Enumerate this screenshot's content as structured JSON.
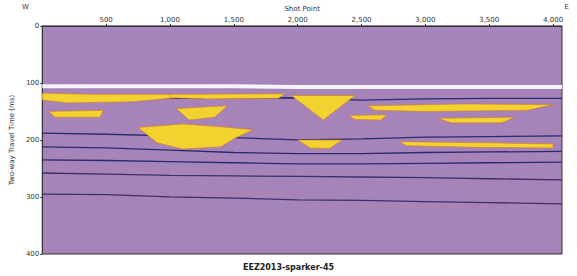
{
  "chart_data": {
    "type": "line",
    "title": "EEZ2013-sparker-45",
    "x_label": "Shot Point",
    "y_label": "Two-way Travel Time (ms)",
    "annotations": [
      "W",
      "E"
    ],
    "xlim": [
      0,
      4070
    ],
    "xticks": [
      500,
      1000,
      1500,
      2000,
      2500,
      3000,
      3500,
      4000
    ],
    "ylim": [
      0,
      400
    ],
    "yticks": [
      0,
      100,
      200,
      300,
      400
    ],
    "grid": false,
    "series": [
      {
        "type": "line",
        "color": "#f4f4ff",
        "x": [
          0,
          500,
          1000,
          1500,
          2000,
          2500,
          3000,
          3500,
          4070
        ],
        "values": [
          106,
          106,
          106,
          106,
          107,
          107,
          107,
          107,
          107
        ]
      },
      {
        "type": "line",
        "color": "#2a2a6e",
        "x": [
          0,
          500,
          1000,
          1500,
          2000,
          2500,
          3000,
          3500,
          4070
        ],
        "values": [
          125,
          126,
          127,
          127,
          126,
          130,
          128,
          127,
          127
        ]
      },
      {
        "type": "line",
        "color": "#2a2a6e",
        "x": [
          0,
          500,
          1000,
          1500,
          2000,
          2500,
          3000,
          3500,
          4070
        ],
        "values": [
          188,
          190,
          193,
          196,
          200,
          198,
          195,
          194,
          193
        ]
      },
      {
        "type": "line",
        "color": "#2a2a6e",
        "x": [
          0,
          500,
          1000,
          1500,
          2000,
          2500,
          3000,
          3500,
          4070
        ],
        "values": [
          212,
          214,
          218,
          222,
          224,
          224,
          222,
          221,
          220
        ]
      },
      {
        "type": "line",
        "color": "#2a2a6e",
        "x": [
          0,
          500,
          1000,
          1500,
          2000,
          2500,
          3000,
          3500,
          4070
        ],
        "values": [
          235,
          236,
          238,
          240,
          242,
          242,
          241,
          240,
          239
        ]
      },
      {
        "type": "line",
        "color": "#3b2f6e",
        "x": [
          0,
          500,
          1000,
          1500,
          2000,
          2500,
          3000,
          3500,
          4070
        ],
        "values": [
          258,
          260,
          262,
          263,
          264,
          265,
          266,
          268,
          270
        ]
      },
      {
        "type": "line",
        "color": "#3b2f6e",
        "x": [
          0,
          500,
          1000,
          1500,
          2000,
          2500,
          3000,
          3500,
          4070
        ],
        "values": [
          295,
          296,
          300,
          302,
          305,
          306,
          308,
          310,
          312
        ]
      },
      {
        "type": "polygon",
        "color": "#f2d22e",
        "points": [
          [
            0,
            118
          ],
          [
            400,
            120
          ],
          [
            1000,
            120
          ],
          [
            1050,
            126
          ],
          [
            700,
            133
          ],
          [
            200,
            135
          ],
          [
            0,
            130
          ]
        ]
      },
      {
        "type": "polygon",
        "color": "#f2d22e",
        "points": [
          [
            1000,
            120
          ],
          [
            1900,
            119
          ],
          [
            1850,
            127
          ],
          [
            1300,
            128
          ],
          [
            1000,
            126
          ]
        ]
      },
      {
        "type": "polygon",
        "color": "#f2d22e",
        "points": [
          [
            1950,
            122
          ],
          [
            2450,
            122
          ],
          [
            2200,
            165
          ]
        ]
      },
      {
        "type": "polygon",
        "color": "#f2d22e",
        "points": [
          [
            50,
            150
          ],
          [
            480,
            148
          ],
          [
            450,
            160
          ],
          [
            100,
            160
          ]
        ]
      },
      {
        "type": "polygon",
        "color": "#f2d22e",
        "points": [
          [
            750,
            178
          ],
          [
            1100,
            172
          ],
          [
            1350,
            176
          ],
          [
            1650,
            182
          ],
          [
            1500,
            198
          ],
          [
            1400,
            212
          ],
          [
            1100,
            216
          ],
          [
            900,
            205
          ]
        ]
      },
      {
        "type": "polygon",
        "color": "#f2d22e",
        "points": [
          [
            1050,
            145
          ],
          [
            1450,
            140
          ],
          [
            1350,
            160
          ],
          [
            1150,
            165
          ]
        ]
      },
      {
        "type": "polygon",
        "color": "#f2d22e",
        "points": [
          [
            2000,
            200
          ],
          [
            2350,
            200
          ],
          [
            2250,
            215
          ],
          [
            2100,
            214
          ]
        ]
      },
      {
        "type": "polygon",
        "color": "#f2d22e",
        "points": [
          [
            2400,
            157
          ],
          [
            2700,
            156
          ],
          [
            2650,
            165
          ],
          [
            2450,
            164
          ]
        ]
      },
      {
        "type": "polygon",
        "color": "#f2d22e",
        "points": [
          [
            2550,
            140
          ],
          [
            3300,
            137
          ],
          [
            4000,
            138
          ],
          [
            3800,
            148
          ],
          [
            3000,
            150
          ],
          [
            2600,
            148
          ]
        ]
      },
      {
        "type": "polygon",
        "color": "#f2d22e",
        "points": [
          [
            3100,
            162
          ],
          [
            3700,
            160
          ],
          [
            3600,
            170
          ],
          [
            3200,
            170
          ]
        ]
      },
      {
        "type": "polygon",
        "color": "#f2d22e",
        "points": [
          [
            2800,
            203
          ],
          [
            3500,
            205
          ],
          [
            4000,
            207
          ],
          [
            4000,
            214
          ],
          [
            3400,
            213
          ],
          [
            2850,
            210
          ]
        ]
      }
    ]
  }
}
